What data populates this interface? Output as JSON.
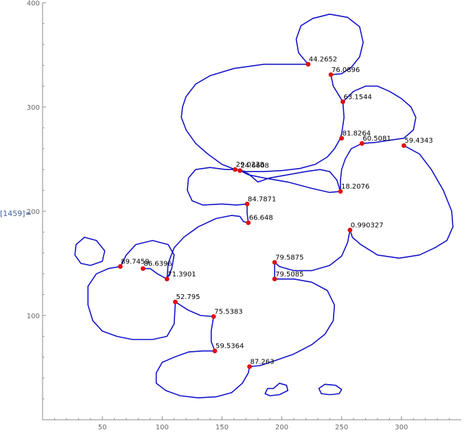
{
  "cell": {
    "label": "[1459]="
  },
  "chart_data": {
    "type": "scatter",
    "xlim": [
      0,
      350
    ],
    "ylim": [
      0,
      400
    ],
    "x_ticks": [
      50,
      100,
      150,
      200,
      250,
      300
    ],
    "y_ticks": [
      100,
      200,
      300,
      400
    ],
    "colors": {
      "curve": "#1010c8",
      "point": "#e01010",
      "axis": "#888888"
    },
    "points": [
      {
        "x": 222,
        "y": 341,
        "label": "44.2652"
      },
      {
        "x": 241,
        "y": 331,
        "label": "76.0896"
      },
      {
        "x": 251,
        "y": 305,
        "label": "63.1544"
      },
      {
        "x": 250,
        "y": 270,
        "label": "81.8264"
      },
      {
        "x": 267,
        "y": 265,
        "label": "60.5081"
      },
      {
        "x": 302,
        "y": 263,
        "label": "59.4343"
      },
      {
        "x": 161,
        "y": 240,
        "label": "29.0238"
      },
      {
        "x": 165,
        "y": 239,
        "label": "24.6608"
      },
      {
        "x": 249,
        "y": 219,
        "label": "18.2076"
      },
      {
        "x": 171,
        "y": 207,
        "label": "84.7871"
      },
      {
        "x": 172,
        "y": 189,
        "label": "66.648"
      },
      {
        "x": 257,
        "y": 182,
        "label": "0.990327"
      },
      {
        "x": 194,
        "y": 151,
        "label": "79.5875"
      },
      {
        "x": 65,
        "y": 147,
        "label": "89.7459"
      },
      {
        "x": 84,
        "y": 145,
        "label": "86.6396"
      },
      {
        "x": 194,
        "y": 135,
        "label": "79.5085"
      },
      {
        "x": 104,
        "y": 135,
        "label": "71.3901"
      },
      {
        "x": 111,
        "y": 113,
        "label": "52.795"
      },
      {
        "x": 143,
        "y": 99,
        "label": "75.5383"
      },
      {
        "x": 144,
        "y": 66,
        "label": "59.5364"
      },
      {
        "x": 173,
        "y": 51,
        "label": "87.263"
      }
    ],
    "curves": [
      [
        [
          222,
          341
        ],
        [
          205,
          341
        ],
        [
          185,
          341
        ],
        [
          160,
          337
        ],
        [
          140,
          330
        ],
        [
          128,
          322
        ],
        [
          120,
          310
        ],
        [
          117,
          300
        ],
        [
          116,
          290
        ],
        [
          120,
          278
        ],
        [
          128,
          265
        ],
        [
          138,
          255
        ],
        [
          150,
          245
        ],
        [
          161,
          240
        ],
        [
          170,
          238
        ],
        [
          185,
          238
        ],
        [
          200,
          239
        ],
        [
          215,
          241
        ],
        [
          228,
          245
        ],
        [
          238,
          252
        ],
        [
          244,
          260
        ],
        [
          248,
          268
        ],
        [
          250,
          274
        ],
        [
          252,
          290
        ],
        [
          251,
          305
        ],
        [
          260,
          315
        ],
        [
          270,
          320
        ],
        [
          280,
          320
        ],
        [
          290,
          315
        ],
        [
          300,
          308
        ],
        [
          308,
          300
        ],
        [
          312,
          290
        ],
        [
          310,
          278
        ],
        [
          302,
          270
        ],
        [
          290,
          268
        ],
        [
          278,
          266
        ],
        [
          267,
          265
        ],
        [
          258,
          260
        ],
        [
          253,
          250
        ],
        [
          250,
          240
        ],
        [
          249,
          230
        ],
        [
          249,
          219
        ],
        [
          240,
          218
        ],
        [
          225,
          222
        ],
        [
          205,
          228
        ],
        [
          185,
          232
        ],
        [
          172,
          235
        ],
        [
          165,
          239
        ]
      ],
      [
        [
          222,
          341
        ],
        [
          214,
          352
        ],
        [
          212,
          365
        ],
        [
          216,
          378
        ],
        [
          226,
          385
        ],
        [
          240,
          389
        ],
        [
          255,
          386
        ],
        [
          265,
          377
        ],
        [
          268,
          362
        ],
        [
          265,
          348
        ],
        [
          258,
          338
        ],
        [
          250,
          332
        ],
        [
          241,
          331
        ],
        [
          243,
          320
        ],
        [
          251,
          305
        ]
      ],
      [
        [
          161,
          240
        ],
        [
          153,
          240
        ],
        [
          140,
          242
        ],
        [
          128,
          240
        ],
        [
          122,
          232
        ],
        [
          121,
          220
        ],
        [
          125,
          210
        ],
        [
          134,
          206
        ],
        [
          150,
          207
        ],
        [
          162,
          206
        ],
        [
          171,
          207
        ],
        [
          171,
          198
        ],
        [
          172,
          189
        ],
        [
          168,
          190
        ],
        [
          165,
          195
        ],
        [
          158,
          196
        ],
        [
          145,
          193
        ],
        [
          130,
          185
        ],
        [
          118,
          175
        ],
        [
          110,
          165
        ],
        [
          105,
          150
        ],
        [
          104,
          135
        ]
      ],
      [
        [
          165,
          239
        ],
        [
          172,
          236
        ],
        [
          180,
          228
        ],
        [
          190,
          232
        ],
        [
          205,
          235
        ],
        [
          220,
          238
        ],
        [
          232,
          240
        ],
        [
          240,
          238
        ],
        [
          246,
          230
        ],
        [
          249,
          219
        ]
      ],
      [
        [
          302,
          263
        ],
        [
          315,
          255
        ],
        [
          325,
          240
        ],
        [
          335,
          220
        ],
        [
          342,
          200
        ],
        [
          343,
          185
        ],
        [
          338,
          172
        ],
        [
          328,
          165
        ],
        [
          315,
          158
        ],
        [
          298,
          155
        ],
        [
          280,
          158
        ],
        [
          266,
          168
        ],
        [
          259,
          175
        ],
        [
          257,
          182
        ],
        [
          255,
          170
        ],
        [
          250,
          157
        ],
        [
          240,
          148
        ],
        [
          225,
          143
        ],
        [
          210,
          143
        ],
        [
          198,
          147
        ],
        [
          194,
          151
        ],
        [
          194,
          143
        ],
        [
          194,
          135
        ],
        [
          210,
          135
        ],
        [
          225,
          132
        ],
        [
          238,
          124
        ],
        [
          244,
          110
        ],
        [
          243,
          95
        ],
        [
          236,
          82
        ],
        [
          225,
          72
        ],
        [
          210,
          63
        ],
        [
          195,
          57
        ],
        [
          182,
          52
        ],
        [
          173,
          51
        ]
      ],
      [
        [
          65,
          147
        ],
        [
          55,
          145
        ],
        [
          45,
          140
        ],
        [
          38,
          128
        ],
        [
          38,
          110
        ],
        [
          42,
          95
        ],
        [
          50,
          85
        ],
        [
          62,
          80
        ],
        [
          75,
          77
        ],
        [
          92,
          77
        ],
        [
          104,
          80
        ],
        [
          110,
          92
        ],
        [
          111,
          113
        ],
        [
          122,
          105
        ],
        [
          132,
          100
        ],
        [
          143,
          99
        ],
        [
          141,
          85
        ],
        [
          141,
          75
        ],
        [
          144,
          66
        ],
        [
          134,
          66
        ],
        [
          122,
          65
        ],
        [
          110,
          60
        ],
        [
          100,
          55
        ],
        [
          95,
          45
        ],
        [
          95,
          35
        ],
        [
          103,
          28
        ],
        [
          115,
          23
        ],
        [
          130,
          21
        ],
        [
          145,
          22
        ],
        [
          158,
          26
        ],
        [
          167,
          35
        ],
        [
          172,
          45
        ],
        [
          173,
          51
        ]
      ],
      [
        [
          65,
          147
        ],
        [
          70,
          158
        ],
        [
          78,
          168
        ],
        [
          92,
          172
        ],
        [
          105,
          168
        ],
        [
          110,
          158
        ],
        [
          108,
          145
        ],
        [
          104,
          135
        ],
        [
          96,
          140
        ],
        [
          90,
          145
        ],
        [
          84,
          145
        ]
      ],
      [
        [
          35,
          175
        ],
        [
          45,
          172
        ],
        [
          52,
          162
        ],
        [
          50,
          152
        ],
        [
          40,
          148
        ],
        [
          32,
          150
        ],
        [
          27,
          158
        ],
        [
          28,
          168
        ],
        [
          35,
          175
        ]
      ],
      [
        [
          193,
          30
        ],
        [
          198,
          35
        ],
        [
          204,
          33
        ],
        [
          205,
          28
        ],
        [
          198,
          24
        ],
        [
          190,
          23
        ],
        [
          186,
          25
        ],
        [
          188,
          30
        ],
        [
          193,
          30
        ]
      ],
      [
        [
          245,
          33
        ],
        [
          250,
          29
        ],
        [
          248,
          25
        ],
        [
          240,
          24
        ],
        [
          233,
          25
        ],
        [
          231,
          30
        ],
        [
          236,
          34
        ],
        [
          245,
          33
        ]
      ]
    ]
  }
}
